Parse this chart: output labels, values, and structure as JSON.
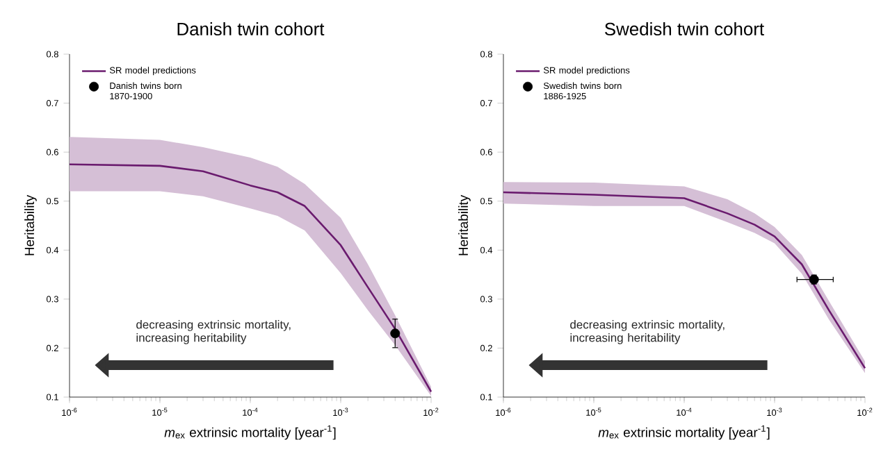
{
  "chart_data": [
    {
      "type": "line",
      "title": "Danish twin cohort",
      "xlabel": "*m*$_{ex}$  extrinsic mortality [year$^{-1}$]",
      "ylabel": "Heritability",
      "log": "x",
      "legend": "top left",
      "xlim": [
        1e-06,
        0.01
      ],
      "ylim": [
        0.1,
        0.8
      ],
      "xticks": [
        {
          "value": 1e-06,
          "label": "10$^{-6}$"
        },
        {
          "value": 1e-05,
          "label": "10$^{-5}$"
        },
        {
          "value": 0.0001,
          "label": "10$^{-4}$"
        },
        {
          "value": 0.001,
          "label": "10$^{-3}$"
        },
        {
          "value": 0.01,
          "label": "10$^{-2}$"
        }
      ],
      "yticks": [
        0.1,
        0.2,
        0.3,
        0.4,
        0.5,
        0.6,
        0.7,
        0.8
      ],
      "annotations": [
        "decreasing extrinsic mortality, increasing heritability"
      ],
      "series": [
        {
          "name": "SR model predictions",
          "color": "#6a1b6e",
          "x": [
            1e-06,
            1e-05,
            3e-05,
            0.0001,
            0.0002,
            0.0004,
            0.001,
            0.002,
            0.004,
            0.01
          ],
          "values": [
            0.575,
            0.572,
            0.561,
            0.532,
            0.518,
            0.49,
            0.41,
            0.324,
            0.239,
            0.111
          ],
          "lower": [
            0.52,
            0.52,
            0.51,
            0.485,
            0.47,
            0.44,
            0.353,
            0.277,
            0.206,
            0.102
          ],
          "upper": [
            0.631,
            0.625,
            0.61,
            0.589,
            0.57,
            0.535,
            0.466,
            0.371,
            0.267,
            0.121
          ]
        },
        {
          "type": "scatter",
          "name": "Danish twins born 1870-1900",
          "color": "#000000",
          "x": [
            0.004
          ],
          "values": [
            0.23
          ],
          "errors": [
            [
              0.2,
              0.26
            ]
          ]
        }
      ]
    },
    {
      "type": "line",
      "title": "Swedish twin cohort",
      "xlabel": "*m*$_{ex}$  extrinsic mortality [year$^{-1}$]",
      "ylabel": "Heritability",
      "log": "x",
      "legend": "top left",
      "xlim": [
        1e-06,
        0.01
      ],
      "ylim": [
        0.1,
        0.8
      ],
      "xticks": [
        {
          "value": 1e-06,
          "label": "10$^{-6}$"
        },
        {
          "value": 1e-05,
          "label": "10$^{-5}$"
        },
        {
          "value": 0.0001,
          "label": "10$^{-4}$"
        },
        {
          "value": 0.001,
          "label": "10$^{-3}$"
        },
        {
          "value": 0.01,
          "label": "10$^{-2}$"
        }
      ],
      "yticks": [
        0.1,
        0.2,
        0.3,
        0.4,
        0.5,
        0.6,
        0.7,
        0.8
      ],
      "annotations": [
        "decreasing extrinsic mortality, increasing heritability"
      ],
      "series": [
        {
          "name": "SR model predictions",
          "color": "#6a1b6e",
          "x": [
            1e-06,
            1e-05,
            0.0001,
            0.0003,
            0.0006,
            0.001,
            0.002,
            0.004,
            0.01
          ],
          "values": [
            0.518,
            0.513,
            0.506,
            0.475,
            0.452,
            0.428,
            0.371,
            0.277,
            0.159
          ],
          "lower": [
            0.495,
            0.49,
            0.49,
            0.457,
            0.435,
            0.414,
            0.352,
            0.258,
            0.149
          ],
          "upper": [
            0.539,
            0.538,
            0.53,
            0.504,
            0.475,
            0.447,
            0.39,
            0.296,
            0.173
          ]
        },
        {
          "type": "scatter",
          "name": "Swedish twins born 1886-1925",
          "color": "#000000",
          "x": [
            0.00273
          ],
          "values": [
            0.34
          ],
          "errors": [
            [
              0.33,
              0.35
            ]
          ],
          "xerrors": [
            [
              0.00175,
              0.0045
            ]
          ]
        }
      ]
    }
  ]
}
